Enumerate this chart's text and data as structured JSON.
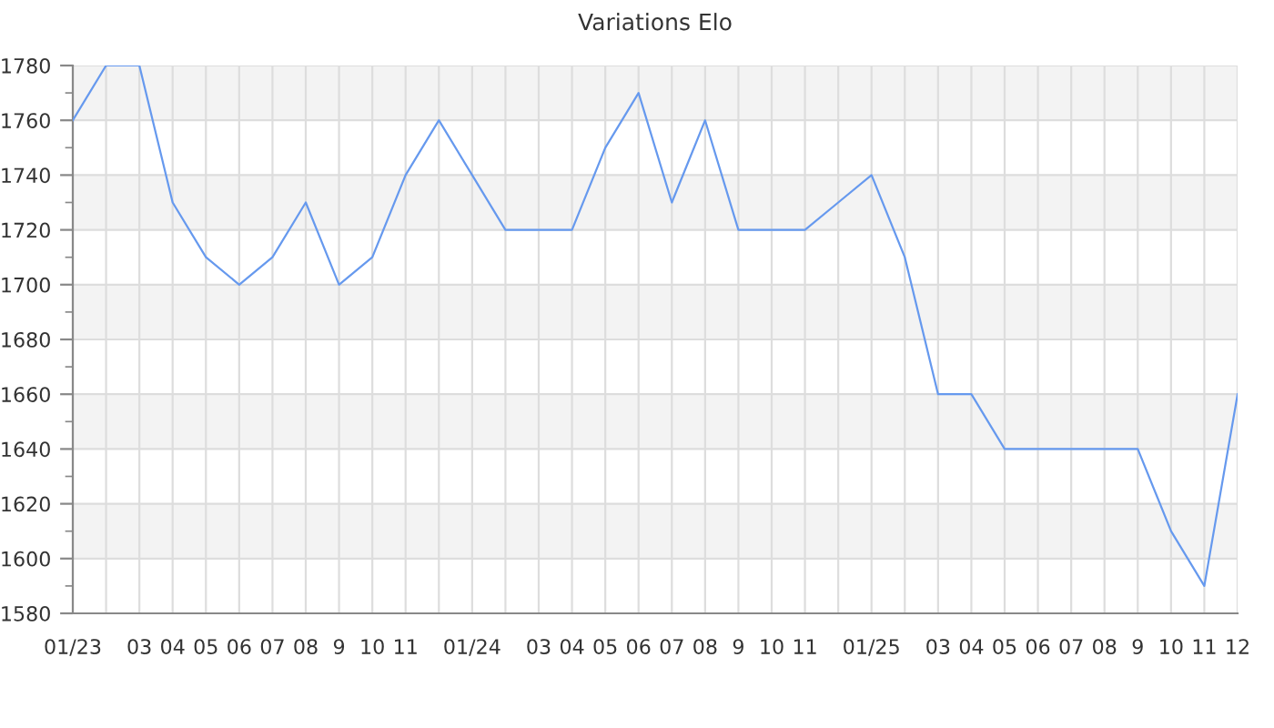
{
  "chart_data": {
    "type": "line",
    "title": "Variations Elo",
    "categories": [
      "01/23",
      null,
      "03",
      "04",
      "05",
      "06",
      "07",
      "08",
      "9",
      "10",
      "11",
      null,
      "01/24",
      null,
      "03",
      "04",
      "05",
      "06",
      "07",
      "08",
      "9",
      "10",
      "11",
      null,
      "01/25",
      null,
      "03",
      "04",
      "05",
      "06",
      "07",
      "08",
      "9",
      "10",
      "11",
      "12"
    ],
    "series": [
      {
        "color": "#6699ee",
        "values": [
          1760,
          1780,
          1780,
          1730,
          1710,
          1700,
          1710,
          1730,
          1700,
          1710,
          1740,
          1760,
          1740,
          1720,
          1720,
          1720,
          1750,
          1770,
          1730,
          1760,
          1720,
          1720,
          1720,
          1730,
          1740,
          1710,
          1660,
          1660,
          1640,
          1640,
          1640,
          1640,
          1640,
          1610,
          1590,
          1660
        ]
      }
    ],
    "ylim": [
      1580,
      1780
    ],
    "yticks": [
      1580,
      1600,
      1620,
      1640,
      1660,
      1680,
      1700,
      1720,
      1740,
      1760,
      1780
    ],
    "grid": true,
    "marker": "none",
    "line_style": "solid"
  }
}
